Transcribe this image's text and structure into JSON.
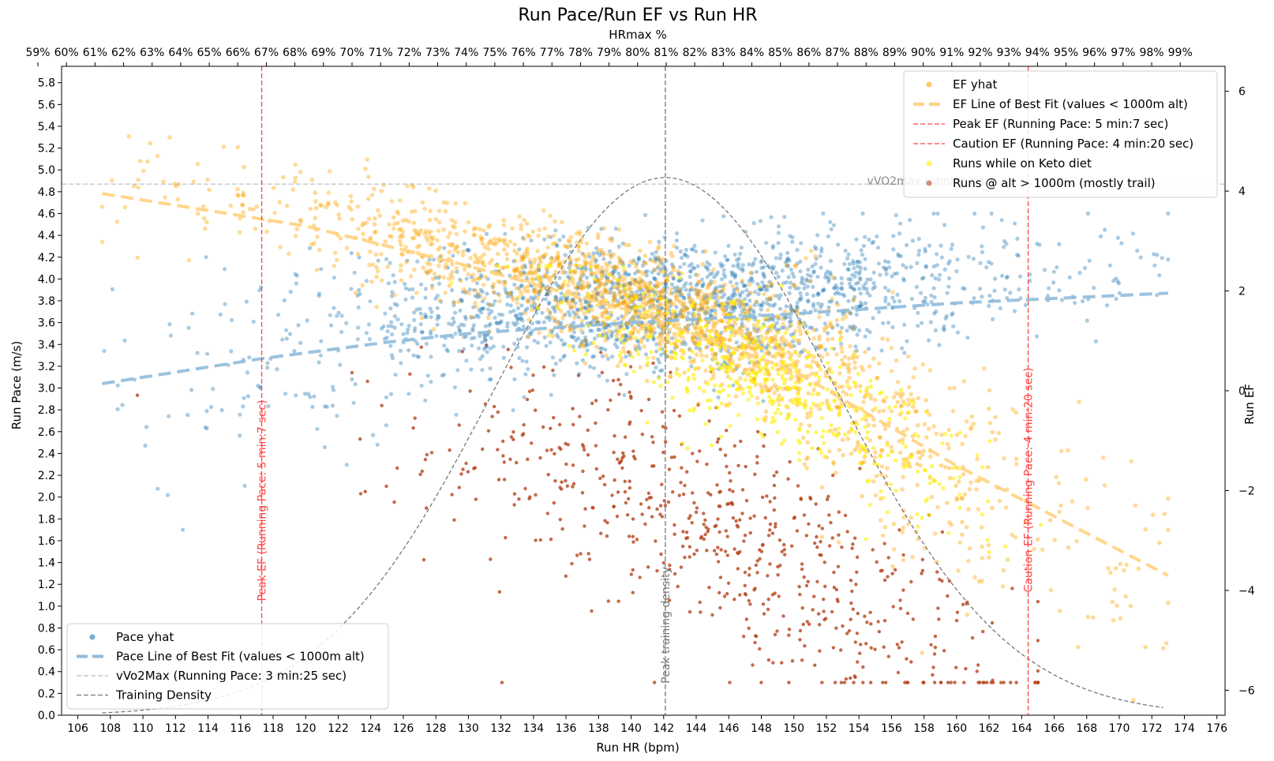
{
  "chart_data": {
    "type": "scatter",
    "title": "Run Pace/Run EF vs Run HR",
    "xlabel": "Run HR (bpm)",
    "ylabel": "Run Pace (m/s)",
    "y2label": "Run EF",
    "top_xlabel": "HRmax %",
    "xlim": [
      105,
      176.5
    ],
    "ylim": [
      0,
      5.95
    ],
    "y2lim": [
      -6.5,
      6.5
    ],
    "x_ticks": [
      "106",
      "108",
      "110",
      "112",
      "114",
      "116",
      "118",
      "120",
      "122",
      "124",
      "126",
      "128",
      "130",
      "132",
      "134",
      "136",
      "138",
      "140",
      "142",
      "144",
      "146",
      "148",
      "150",
      "152",
      "154",
      "156",
      "158",
      "160",
      "162",
      "164",
      "166",
      "168",
      "170",
      "172",
      "174",
      "176"
    ],
    "y_ticks": [
      "0.0",
      "0.2",
      "0.4",
      "0.6",
      "0.8",
      "1.0",
      "1.2",
      "1.4",
      "1.6",
      "1.8",
      "2.0",
      "2.2",
      "2.4",
      "2.6",
      "2.8",
      "3.0",
      "3.2",
      "3.4",
      "3.6",
      "3.8",
      "4.0",
      "4.2",
      "4.4",
      "4.6",
      "4.8",
      "5.0",
      "5.2",
      "5.4",
      "5.6",
      "5.8"
    ],
    "y2_ticks": [
      "−6",
      "−4",
      "−2",
      "0",
      "2",
      "4",
      "6"
    ],
    "top_ticks": [
      "59%",
      "60%",
      "61%",
      "62%",
      "63%",
      "64%",
      "65%",
      "66%",
      "67%",
      "68%",
      "69%",
      "70%",
      "71%",
      "72%",
      "73%",
      "74%",
      "75%",
      "76%",
      "77%",
      "78%",
      "79%",
      "80%",
      "81%",
      "82%",
      "83%",
      "84%",
      "85%",
      "86%",
      "87%",
      "88%",
      "89%",
      "90%",
      "91%",
      "92%",
      "93%",
      "94%",
      "95%",
      "96%",
      "97%",
      "98%",
      "99%"
    ],
    "hrmax_bpm": 175.5,
    "series": [
      {
        "name": "Pace yhat",
        "color": "#1f77b4",
        "kind": "scatter",
        "axis": "pace",
        "x_range": [
          107.5,
          173
        ],
        "center": [
          151,
          3.75
        ]
      },
      {
        "name": "EF yhat",
        "color": "#ffa500",
        "kind": "scatter",
        "axis": "ef",
        "x_range": [
          107.5,
          173
        ],
        "center": [
          139,
          1.8
        ]
      },
      {
        "name": "Runs while on Keto diet",
        "color": "#ffee00",
        "kind": "scatter",
        "axis": "ef",
        "x_range": [
          126,
          170
        ],
        "center": [
          148,
          0
        ]
      },
      {
        "name": "Runs @ alt > 1000m (mostly trail)",
        "color": "#b5441b",
        "kind": "scatter",
        "axis": "pace",
        "x_range": [
          107.5,
          165
        ],
        "center": [
          148,
          1.1
        ]
      }
    ],
    "fit_lines": [
      {
        "name": "Pace Line of Best Fit (values < 1000m alt)",
        "color": "#8fbbdc",
        "axis": "pace",
        "x": [
          107.5,
          117.3,
          125,
          130,
          140,
          150,
          160,
          173
        ],
        "y": [
          3.04,
          3.27,
          3.42,
          3.5,
          3.6,
          3.68,
          3.78,
          3.87
        ]
      },
      {
        "name": "EF Line of Best Fit (values < 1000m alt)",
        "color": "#ffd280",
        "axis": "ef",
        "x": [
          107.5,
          120,
          130,
          140,
          150,
          160,
          173
        ],
        "y": [
          3.95,
          3.3,
          2.5,
          1.6,
          0.4,
          -1.5,
          -3.7
        ]
      }
    ],
    "reference_lines": [
      {
        "name": "Peak EF (Running Pace: 5 min:7 sec)",
        "orientation": "vertical",
        "x": 117.3,
        "color": "#ff4444",
        "label": "Peak EF (Running Pace: 5 min:7 sec)"
      },
      {
        "name": "Caution EF (Running Pace: 4 min:20 sec)",
        "orientation": "vertical",
        "x": 164.4,
        "color": "#ff4444",
        "label": "Caution EF (Running Pace: 4 min:20 sec)"
      },
      {
        "name": "vVo2Max (Running Pace: 3 min:25 sec)",
        "orientation": "horizontal",
        "y": 4.87,
        "color": "#bbbbbb",
        "label": "vVO2max running pace"
      },
      {
        "name": "Peak training density",
        "orientation": "vertical",
        "x": 142.1,
        "color": "#777777",
        "label": "Peak training density"
      }
    ],
    "density_curve": {
      "name": "Training Density",
      "color": "#777777",
      "mean": 142.1,
      "sd": 10.5,
      "peak_pace": 4.93,
      "x_range": [
        107.5,
        173
      ]
    },
    "legend_right": [
      "EF yhat",
      "EF Line of Best Fit (values < 1000m alt)",
      "Peak EF (Running Pace: 5 min:7 sec)",
      "Caution EF (Running Pace: 4 min:20 sec)",
      "Runs while on Keto diet",
      "Runs @ alt > 1000m (mostly trail)"
    ],
    "legend_left": [
      "Pace yhat",
      "Pace Line of Best Fit (values < 1000m alt)",
      "vVo2Max (Running Pace: 3 min:25 sec)",
      "Training Density"
    ],
    "legend_right_position": "top-right",
    "legend_left_position": "bottom-left"
  }
}
